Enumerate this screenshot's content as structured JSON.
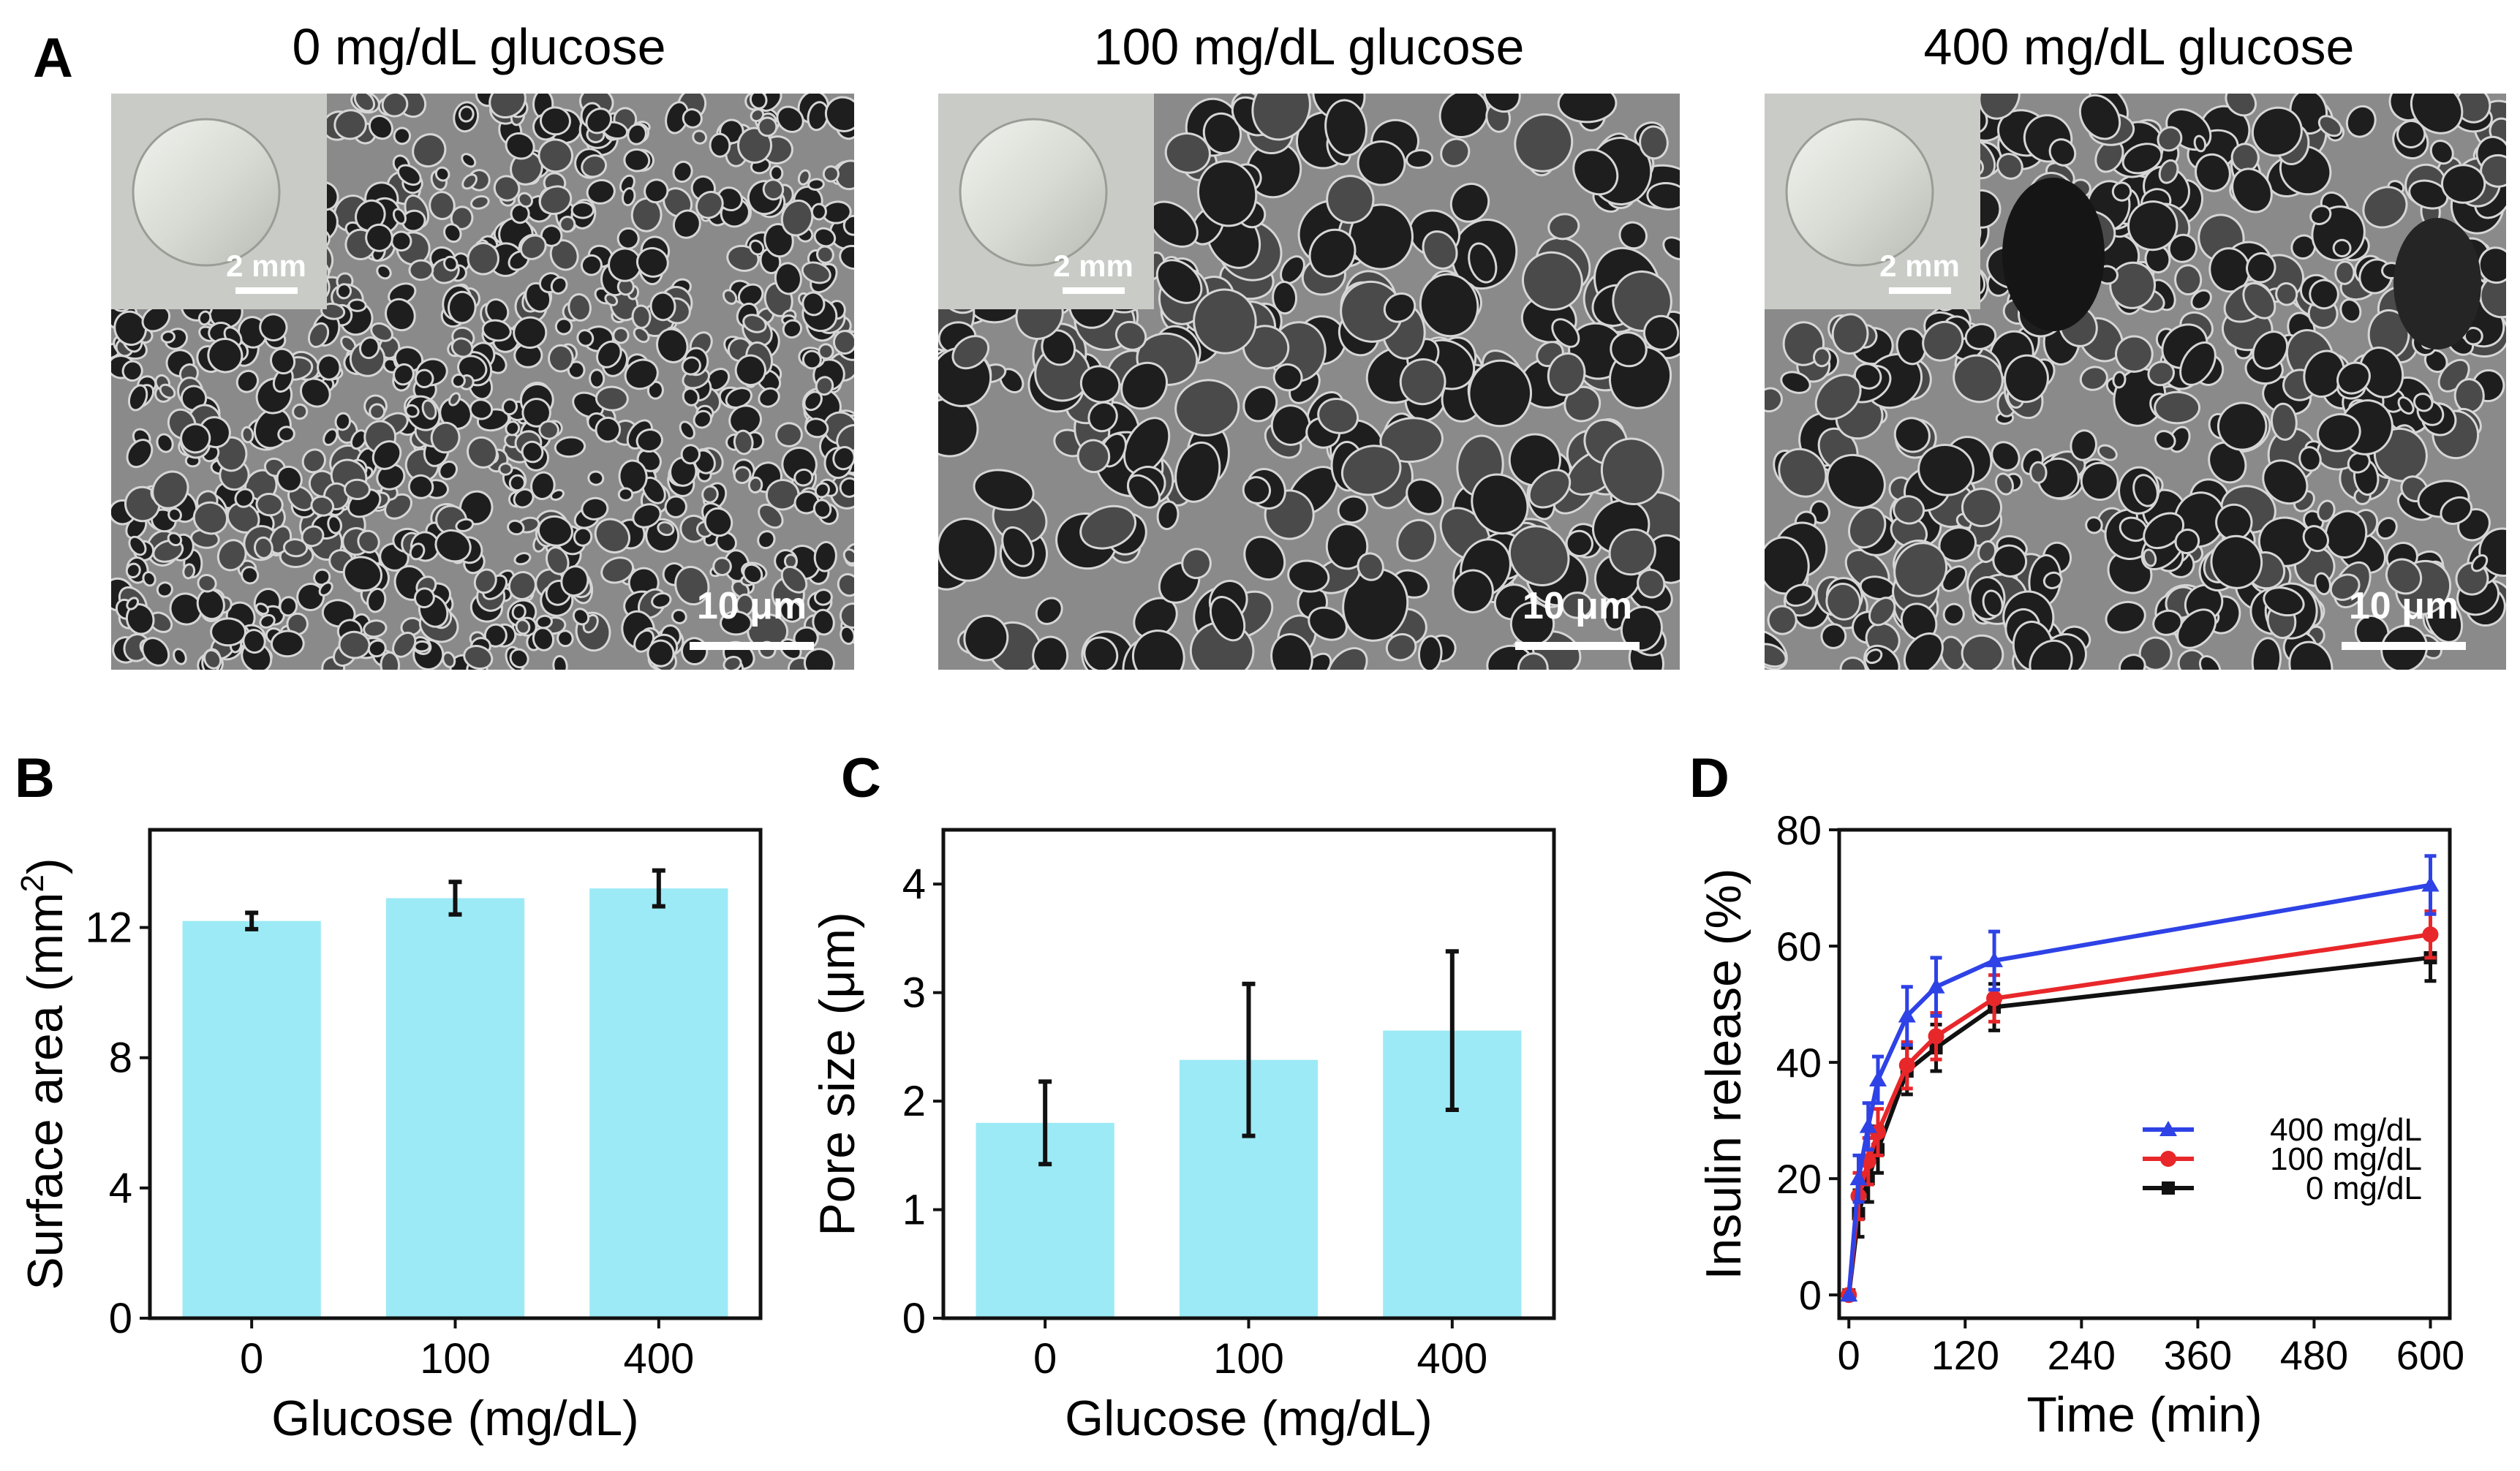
{
  "panel_letters": {
    "a": "A",
    "b": "B",
    "c": "C",
    "d": "D"
  },
  "panel_a": {
    "images": [
      {
        "title": "0 mg/dL glucose",
        "inset_scale": "2 mm",
        "sem_scale": "10 μm",
        "style": "dense"
      },
      {
        "title": "100 mg/dL glucose",
        "inset_scale": "2 mm",
        "sem_scale": "10 μm",
        "style": "open"
      },
      {
        "title": "400 mg/dL glucose",
        "inset_scale": "2 mm",
        "sem_scale": "10 μm",
        "style": "mixed"
      }
    ]
  },
  "chart_data": [
    {
      "panel": "B",
      "type": "bar",
      "xlabel": "Glucose (mg/dL)",
      "ylabel_main": "Surface area (mm",
      "ylabel_sup": "2",
      "ylabel_close": ")",
      "categories": [
        "0",
        "100",
        "400"
      ],
      "values": [
        12.2,
        12.9,
        13.2
      ],
      "errors": [
        0.25,
        0.5,
        0.55
      ],
      "ylim": [
        0,
        15
      ],
      "yticks": [
        0,
        4,
        8,
        12
      ],
      "bar_color": "#9ceaf6"
    },
    {
      "panel": "C",
      "type": "bar",
      "xlabel": "Glucose (mg/dL)",
      "ylabel": "Pore size (μm)",
      "categories": [
        "0",
        "100",
        "400"
      ],
      "values": [
        1.8,
        2.38,
        2.65
      ],
      "errors": [
        0.38,
        0.7,
        0.73
      ],
      "ylim": [
        0,
        4.5
      ],
      "yticks": [
        0,
        1,
        2,
        3,
        4
      ],
      "bar_color": "#9ceaf6"
    },
    {
      "panel": "D",
      "type": "line",
      "xlabel": "Time (min)",
      "ylabel": "Insulin release (%)",
      "xlim": [
        -10,
        620
      ],
      "ylim": [
        -4,
        80
      ],
      "xticks": [
        0,
        120,
        240,
        360,
        480,
        600
      ],
      "yticks": [
        0,
        20,
        40,
        60,
        80
      ],
      "x": [
        0,
        10,
        20,
        30,
        60,
        90,
        150,
        600
      ],
      "legend_position": "lower-right",
      "series": [
        {
          "name": "400 mg/dL",
          "color": "#2e42e6",
          "marker": "triangle",
          "values": [
            0,
            20,
            29,
            37,
            48,
            53,
            57.5,
            70.5
          ],
          "errors": [
            0,
            4,
            4,
            4,
            5,
            5,
            5,
            5
          ]
        },
        {
          "name": "100 mg/dL",
          "color": "#e8272a",
          "marker": "circle",
          "values": [
            0,
            17,
            23,
            28,
            39.5,
            44.5,
            51,
            62
          ],
          "errors": [
            0,
            4,
            4,
            4,
            4,
            4,
            4,
            4
          ]
        },
        {
          "name": "0 mg/dL",
          "color": "#111111",
          "marker": "square",
          "values": [
            0,
            14,
            20,
            25,
            38.5,
            42.5,
            49.5,
            58
          ],
          "errors": [
            0,
            4,
            4,
            4,
            4,
            4,
            4,
            4
          ]
        }
      ]
    }
  ]
}
